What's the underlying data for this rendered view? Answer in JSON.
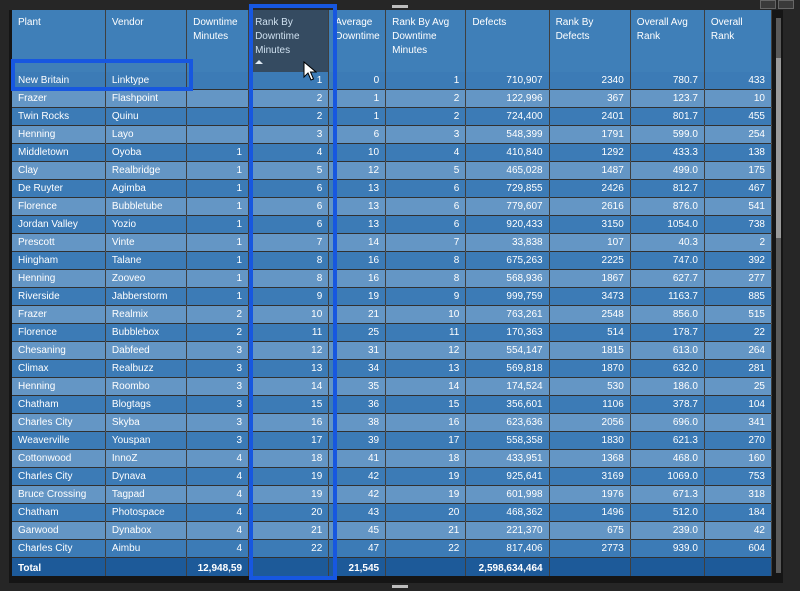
{
  "table": {
    "headers": [
      "Plant",
      "Vendor",
      "Downtime Minutes",
      "Rank By Downtime Minutes",
      "Average Downtime",
      "Rank By Avg Downtime Minutes",
      "Defects",
      "Rank By Defects",
      "Overall Avg Rank",
      "Overall Rank"
    ],
    "rows": [
      [
        "New Britain",
        "Linktype",
        "",
        "1",
        "0",
        "1",
        "710,907",
        "2340",
        "780.7",
        "433"
      ],
      [
        "Frazer",
        "Flashpoint",
        "",
        "2",
        "1",
        "2",
        "122,996",
        "367",
        "123.7",
        "10"
      ],
      [
        "Twin Rocks",
        "Quinu",
        "",
        "2",
        "1",
        "2",
        "724,400",
        "2401",
        "801.7",
        "455"
      ],
      [
        "Henning",
        "Layo",
        "",
        "3",
        "6",
        "3",
        "548,399",
        "1791",
        "599.0",
        "254"
      ],
      [
        "Middletown",
        "Oyoba",
        "1",
        "4",
        "10",
        "4",
        "410,840",
        "1292",
        "433.3",
        "138"
      ],
      [
        "Clay",
        "Realbridge",
        "1",
        "5",
        "12",
        "5",
        "465,028",
        "1487",
        "499.0",
        "175"
      ],
      [
        "De Ruyter",
        "Agimba",
        "1",
        "6",
        "13",
        "6",
        "729,855",
        "2426",
        "812.7",
        "467"
      ],
      [
        "Florence",
        "Bubbletube",
        "1",
        "6",
        "13",
        "6",
        "779,607",
        "2616",
        "876.0",
        "541"
      ],
      [
        "Jordan Valley",
        "Yozio",
        "1",
        "6",
        "13",
        "6",
        "920,433",
        "3150",
        "1054.0",
        "738"
      ],
      [
        "Prescott",
        "Vinte",
        "1",
        "7",
        "14",
        "7",
        "33,838",
        "107",
        "40.3",
        "2"
      ],
      [
        "Hingham",
        "Talane",
        "1",
        "8",
        "16",
        "8",
        "675,263",
        "2225",
        "747.0",
        "392"
      ],
      [
        "Henning",
        "Zooveo",
        "1",
        "8",
        "16",
        "8",
        "568,936",
        "1867",
        "627.7",
        "277"
      ],
      [
        "Riverside",
        "Jabberstorm",
        "1",
        "9",
        "19",
        "9",
        "999,759",
        "3473",
        "1163.7",
        "885"
      ],
      [
        "Frazer",
        "Realmix",
        "2",
        "10",
        "21",
        "10",
        "763,261",
        "2548",
        "856.0",
        "515"
      ],
      [
        "Florence",
        "Bubblebox",
        "2",
        "11",
        "25",
        "11",
        "170,363",
        "514",
        "178.7",
        "22"
      ],
      [
        "Chesaning",
        "Dabfeed",
        "3",
        "12",
        "31",
        "12",
        "554,147",
        "1815",
        "613.0",
        "264"
      ],
      [
        "Climax",
        "Realbuzz",
        "3",
        "13",
        "34",
        "13",
        "569,818",
        "1870",
        "632.0",
        "281"
      ],
      [
        "Henning",
        "Roombo",
        "3",
        "14",
        "35",
        "14",
        "174,524",
        "530",
        "186.0",
        "25"
      ],
      [
        "Chatham",
        "Blogtags",
        "3",
        "15",
        "36",
        "15",
        "356,601",
        "1106",
        "378.7",
        "104"
      ],
      [
        "Charles City",
        "Skyba",
        "3",
        "16",
        "38",
        "16",
        "623,636",
        "2056",
        "696.0",
        "341"
      ],
      [
        "Weaverville",
        "Youspan",
        "3",
        "17",
        "39",
        "17",
        "558,358",
        "1830",
        "621.3",
        "270"
      ],
      [
        "Cottonwood",
        "InnoZ",
        "4",
        "18",
        "41",
        "18",
        "433,951",
        "1368",
        "468.0",
        "160"
      ],
      [
        "Charles City",
        "Dynava",
        "4",
        "19",
        "42",
        "19",
        "925,641",
        "3169",
        "1069.0",
        "753"
      ],
      [
        "Bruce Crossing",
        "Tagpad",
        "4",
        "19",
        "42",
        "19",
        "601,998",
        "1976",
        "671.3",
        "318"
      ],
      [
        "Chatham",
        "Photospace",
        "4",
        "20",
        "43",
        "20",
        "468,362",
        "1496",
        "512.0",
        "184"
      ],
      [
        "Garwood",
        "Dynabox",
        "4",
        "21",
        "45",
        "21",
        "221,370",
        "675",
        "239.0",
        "42"
      ],
      [
        "Charles City",
        "Aimbu",
        "4",
        "22",
        "47",
        "22",
        "817,406",
        "2773",
        "939.0",
        "604"
      ]
    ],
    "total": {
      "label": "Total",
      "downtime_minutes": "12,948,59",
      "average_downtime": "21,545",
      "defects": "2,598,634,464"
    }
  },
  "colors": {
    "row_dark": "#3c7bb6",
    "row_light": "#6496c5",
    "highlight_box": "#1757e0",
    "total_row": "#1d5a99"
  },
  "sorted_column": "Rank By Downtime Minutes",
  "icons": {
    "sort": "sort-ascending-icon",
    "cursor": "mouse-cursor-icon"
  }
}
